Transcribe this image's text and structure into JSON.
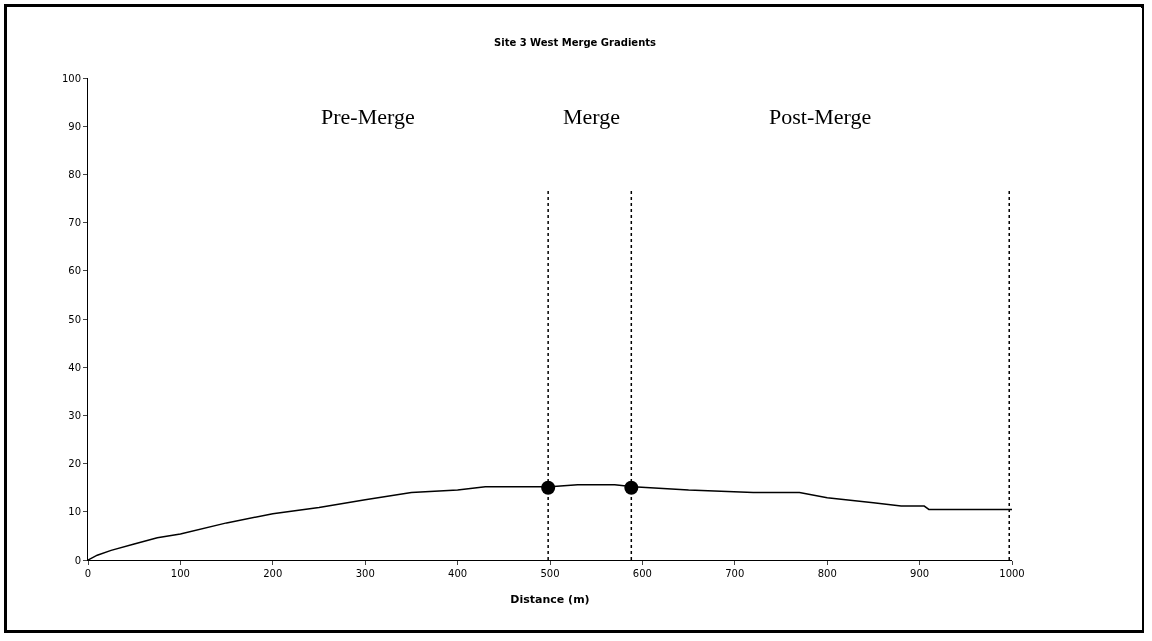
{
  "chart_data": {
    "type": "line",
    "title": "Site 3 West Merge Gradients",
    "xlabel": "Distance (m)",
    "xlim": [
      0,
      1000
    ],
    "xticks": [
      0,
      100,
      200,
      300,
      400,
      500,
      600,
      700,
      800,
      900,
      1000
    ],
    "ylim": [
      0,
      100
    ],
    "yticks": [
      0,
      10,
      20,
      30,
      40,
      50,
      60,
      70,
      80,
      90,
      100
    ],
    "marker": "none",
    "line_style": "solid",
    "annotations": [
      "Pre-Merge",
      "Merge",
      "Post-Merge"
    ],
    "ref_lines": [
      {
        "axis": "x",
        "value": 498,
        "line_style": "dotted",
        "color": "#000000"
      },
      {
        "axis": "x",
        "value": 588,
        "line_style": "dotted",
        "color": "#000000"
      },
      {
        "axis": "x",
        "value": 997,
        "line_style": "dotted",
        "color": "#000000"
      }
    ],
    "series": [
      {
        "color": "#000000",
        "x": [
          0,
          10,
          25,
          50,
          75,
          100,
          150,
          200,
          250,
          300,
          350,
          400,
          430,
          500,
          530,
          570,
          590,
          650,
          720,
          770,
          800,
          850,
          880,
          905,
          910,
          1000
        ],
        "values": [
          0,
          1,
          2,
          3.3,
          4.6,
          5.4,
          7.7,
          9.6,
          10.9,
          12.5,
          14,
          14.5,
          15.2,
          15.2,
          15.6,
          15.6,
          15.2,
          14.5,
          14,
          14,
          12.9,
          11.9,
          11.2,
          11.2,
          10.5,
          10.5
        ]
      },
      {
        "type": "scatter",
        "color": "#000000",
        "marker": "circle",
        "x": [
          498,
          588
        ],
        "values": [
          15,
          15
        ]
      }
    ]
  }
}
